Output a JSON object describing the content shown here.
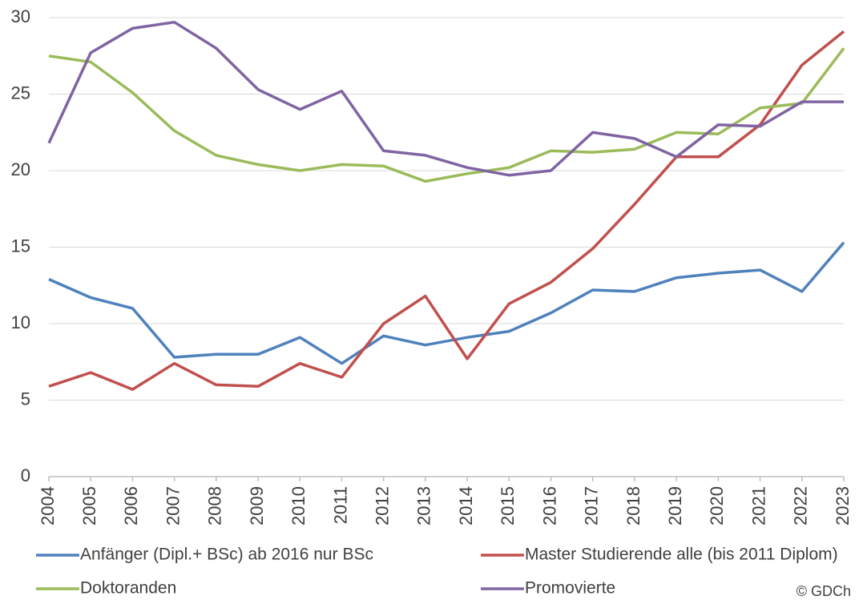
{
  "chart_data": {
    "type": "line",
    "categories": [
      "2004",
      "2005",
      "2006",
      "2007",
      "2008",
      "2009",
      "2010",
      "2011",
      "2012",
      "2013",
      "2014",
      "2015",
      "2016",
      "2017",
      "2018",
      "2019",
      "2020",
      "2021",
      "2022",
      "2023"
    ],
    "series": [
      {
        "name": "Anfänger (Dipl.+ BSc) ab 2016 nur BSc",
        "color": "#4f81bd",
        "values": [
          12.9,
          11.7,
          11.0,
          7.8,
          8.0,
          8.0,
          9.1,
          7.4,
          9.2,
          8.6,
          9.1,
          9.5,
          10.7,
          12.2,
          12.1,
          13.0,
          13.3,
          13.5,
          12.1,
          15.3
        ]
      },
      {
        "name": "Master Studierende alle (bis 2011 Diplom)",
        "color": "#c0504d",
        "values": [
          5.9,
          6.8,
          5.7,
          7.4,
          6.0,
          5.9,
          7.4,
          6.5,
          10.0,
          11.8,
          7.7,
          11.3,
          12.7,
          14.9,
          17.8,
          20.9,
          20.9,
          23.0,
          26.9,
          29.1
        ]
      },
      {
        "name": "Doktoranden",
        "color": "#9bbb59",
        "values": [
          27.5,
          27.1,
          25.1,
          22.6,
          21.0,
          20.4,
          20.0,
          20.4,
          20.3,
          19.3,
          19.8,
          20.2,
          21.3,
          21.2,
          21.4,
          22.5,
          22.4,
          24.1,
          24.4,
          28.0
        ]
      },
      {
        "name": "Promovierte",
        "color": "#8064a2",
        "values": [
          21.8,
          27.7,
          29.3,
          29.7,
          28.0,
          25.3,
          24.0,
          25.2,
          21.3,
          21.0,
          20.2,
          19.7,
          20.0,
          22.5,
          22.1,
          20.9,
          23.0,
          22.9,
          24.5,
          24.5
        ]
      }
    ],
    "ylim": [
      0,
      30
    ],
    "yticks": [
      0,
      5,
      10,
      15,
      20,
      25,
      30
    ],
    "grid": true,
    "legend": "bottom",
    "credit": "© GDCh"
  }
}
